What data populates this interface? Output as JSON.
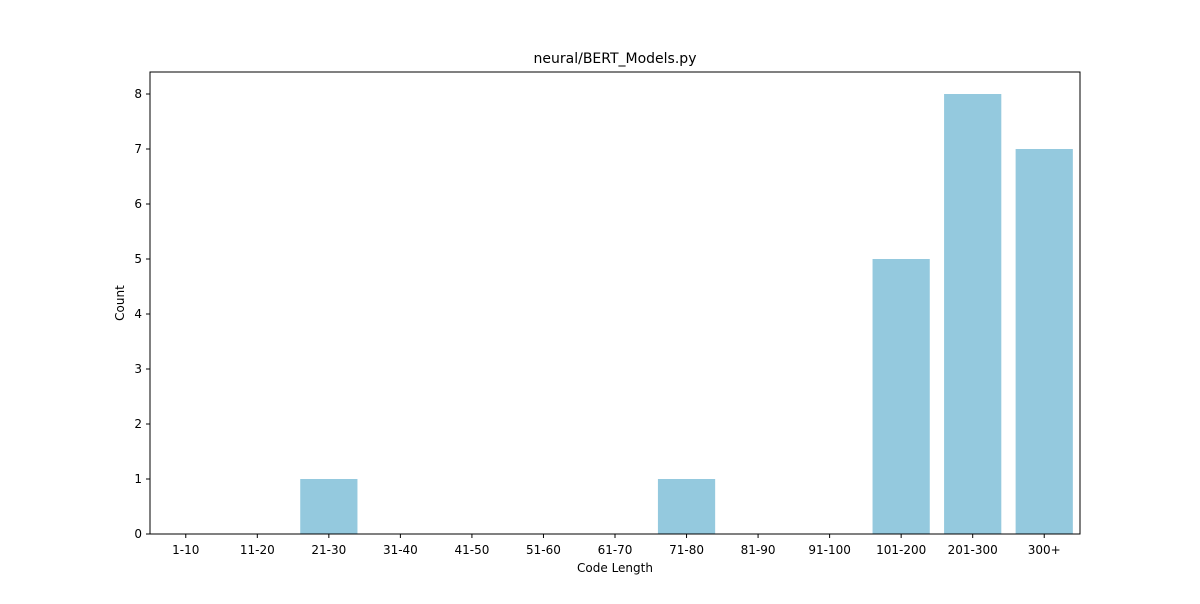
{
  "chart_data": {
    "type": "bar",
    "title": "neural/BERT_Models.py",
    "xlabel": "Code Length",
    "ylabel": "Count",
    "categories": [
      "1-10",
      "11-20",
      "21-30",
      "31-40",
      "41-50",
      "51-60",
      "61-70",
      "71-80",
      "81-90",
      "91-100",
      "101-200",
      "201-300",
      "300+"
    ],
    "values": [
      0,
      0,
      1,
      0,
      0,
      0,
      0,
      1,
      0,
      0,
      5,
      8,
      7
    ],
    "ylim": [
      0,
      8.4
    ],
    "yticks": [
      0,
      1,
      2,
      3,
      4,
      5,
      6,
      7,
      8
    ],
    "grid": false,
    "legend": "none",
    "bar_color": "#94c9de"
  }
}
